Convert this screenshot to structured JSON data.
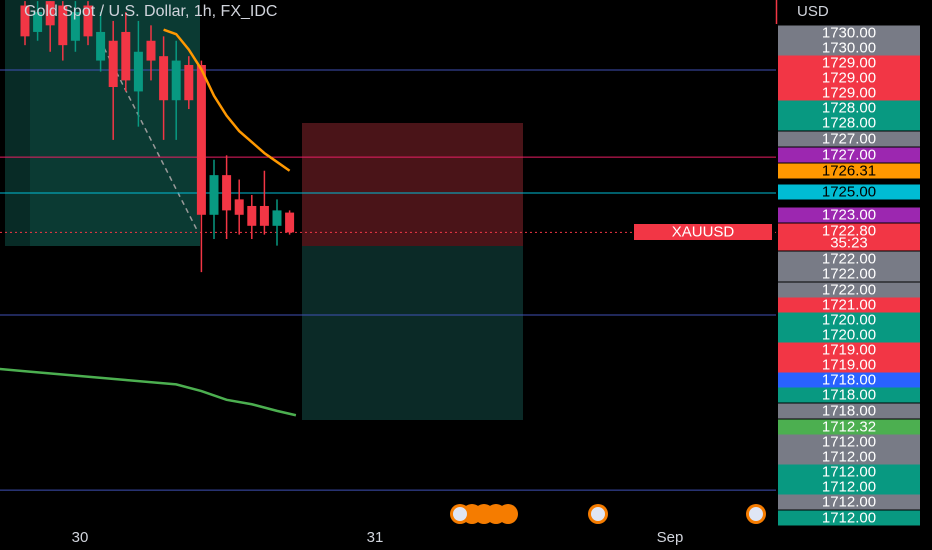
{
  "chart_data": {
    "type": "candlestick",
    "title": "Gold Spot / U.S. Dollar, 1h, FX_IDC",
    "currency": "USD",
    "symbol": "XAUUSD",
    "x_labels": [
      "30",
      "31",
      "Sep"
    ],
    "ylim": [
      1709.7,
      1733.35
    ],
    "up_color": "#089981",
    "down_color": "#f23645",
    "candles": [
      {
        "open": 1733.1,
        "high": 1733.3,
        "low": 1731.3,
        "close": 1731.7
      },
      {
        "open": 1731.9,
        "high": 1733.3,
        "low": 1731.5,
        "close": 1732.8
      },
      {
        "open": 1733.3,
        "high": 1733.3,
        "low": 1731.0,
        "close": 1732.2
      },
      {
        "open": 1733.1,
        "high": 1733.3,
        "low": 1730.6,
        "close": 1731.3
      },
      {
        "open": 1731.5,
        "high": 1733.3,
        "low": 1731.0,
        "close": 1732.8
      },
      {
        "open": 1733.1,
        "high": 1733.3,
        "low": 1731.3,
        "close": 1731.7
      },
      {
        "open": 1730.6,
        "high": 1732.8,
        "low": 1730.1,
        "close": 1731.9
      },
      {
        "open": 1731.5,
        "high": 1732.4,
        "low": 1727.0,
        "close": 1729.4
      },
      {
        "open": 1731.9,
        "high": 1732.8,
        "low": 1729.2,
        "close": 1729.7
      },
      {
        "open": 1729.2,
        "high": 1732.4,
        "low": 1727.6,
        "close": 1731.0
      },
      {
        "open": 1731.5,
        "high": 1732.2,
        "low": 1729.7,
        "close": 1730.6
      },
      {
        "open": 1730.8,
        "high": 1731.7,
        "low": 1727.0,
        "close": 1728.8
      },
      {
        "open": 1728.8,
        "high": 1731.5,
        "low": 1727.0,
        "close": 1730.6
      },
      {
        "open": 1730.4,
        "high": 1730.8,
        "low": 1728.4,
        "close": 1728.8
      },
      {
        "open": 1730.4,
        "high": 1730.6,
        "low": 1721.0,
        "close": 1723.6
      },
      {
        "open": 1723.6,
        "high": 1726.1,
        "low": 1722.5,
        "close": 1725.4
      },
      {
        "open": 1725.4,
        "high": 1726.3,
        "low": 1722.5,
        "close": 1723.8
      },
      {
        "open": 1724.3,
        "high": 1725.2,
        "low": 1722.7,
        "close": 1723.6
      },
      {
        "open": 1724.0,
        "high": 1724.5,
        "low": 1722.5,
        "close": 1723.1
      },
      {
        "open": 1724.0,
        "high": 1725.6,
        "low": 1722.7,
        "close": 1723.1
      },
      {
        "open": 1723.1,
        "high": 1724.3,
        "low": 1722.2,
        "close": 1723.8
      },
      {
        "open": 1723.7,
        "high": 1723.8,
        "low": 1722.7,
        "close": 1722.8
      }
    ],
    "series": [
      {
        "color": "#ff9800",
        "x": [
          11,
          12,
          13,
          14,
          15,
          16,
          17,
          18,
          19,
          20,
          21
        ],
        "values": [
          1732.0,
          1731.8,
          1731.1,
          1730.2,
          1729.0,
          1728.1,
          1727.4,
          1726.9,
          1726.4,
          1726.0,
          1725.6
        ]
      },
      {
        "color": "#4caf50",
        "x": [
          -2,
          0,
          4,
          8,
          12,
          14,
          16,
          18,
          20,
          21.5
        ],
        "values": [
          1716.6,
          1716.5,
          1716.3,
          1716.1,
          1715.9,
          1715.6,
          1715.2,
          1715.0,
          1714.7,
          1714.5
        ]
      }
    ],
    "hlines": [
      {
        "value": 1730.17,
        "color": "#3f51b5"
      },
      {
        "value": 1726.22,
        "color": "#e91e63"
      },
      {
        "value": 1724.59,
        "color": "#00bcd4"
      },
      {
        "value": 1719.05,
        "color": "#3f51b5"
      },
      {
        "value": 1711.1,
        "color": "#3f51b5"
      }
    ],
    "last_price": 1722.8,
    "price_tags": [
      {
        "label": "1730.00",
        "color": "#787b86"
      },
      {
        "label": "1730.00",
        "color": "#787b86"
      },
      {
        "label": "1729.00",
        "color": "#f23645"
      },
      {
        "label": "1729.00",
        "color": "#f23645"
      },
      {
        "label": "1729.00",
        "color": "#f23645"
      },
      {
        "label": "1728.00",
        "color": "#089981"
      },
      {
        "label": "1728.00",
        "color": "#089981"
      },
      {
        "label": "1727.00",
        "color": "#787b86"
      },
      {
        "label": "1727.00",
        "color": "#9c27b0"
      },
      {
        "label": "1726.31",
        "color": "#ff9800"
      },
      {
        "label": "1725.00",
        "color": "#00bcd4"
      },
      {
        "label": "1723.00",
        "color": "#9c27b0"
      },
      {
        "label": "1722.80",
        "color": "#f23645"
      },
      {
        "label": "35:23",
        "color": "#f23645"
      },
      {
        "label": "1722.00",
        "color": "#787b86"
      },
      {
        "label": "1722.00",
        "color": "#787b86"
      },
      {
        "label": "1722.00",
        "color": "#787b86"
      },
      {
        "label": "1721.00",
        "color": "#f23645"
      },
      {
        "label": "1720.00",
        "color": "#089981"
      },
      {
        "label": "1720.00",
        "color": "#089981"
      },
      {
        "label": "1719.00",
        "color": "#f23645"
      },
      {
        "label": "1719.00",
        "color": "#f23645"
      },
      {
        "label": "1718.00",
        "color": "#2962ff"
      },
      {
        "label": "1718.00",
        "color": "#089981"
      },
      {
        "label": "1718.00",
        "color": "#787b86"
      },
      {
        "label": "1712.32",
        "color": "#4caf50"
      },
      {
        "label": "1712.00",
        "color": "#787b86"
      },
      {
        "label": "1712.00",
        "color": "#787b86"
      },
      {
        "label": "1712.00",
        "color": "#089981"
      },
      {
        "label": "1712.00",
        "color": "#089981"
      },
      {
        "label": "1712.00",
        "color": "#787b86"
      },
      {
        "label": "1712.00",
        "color": "#089981"
      }
    ]
  }
}
